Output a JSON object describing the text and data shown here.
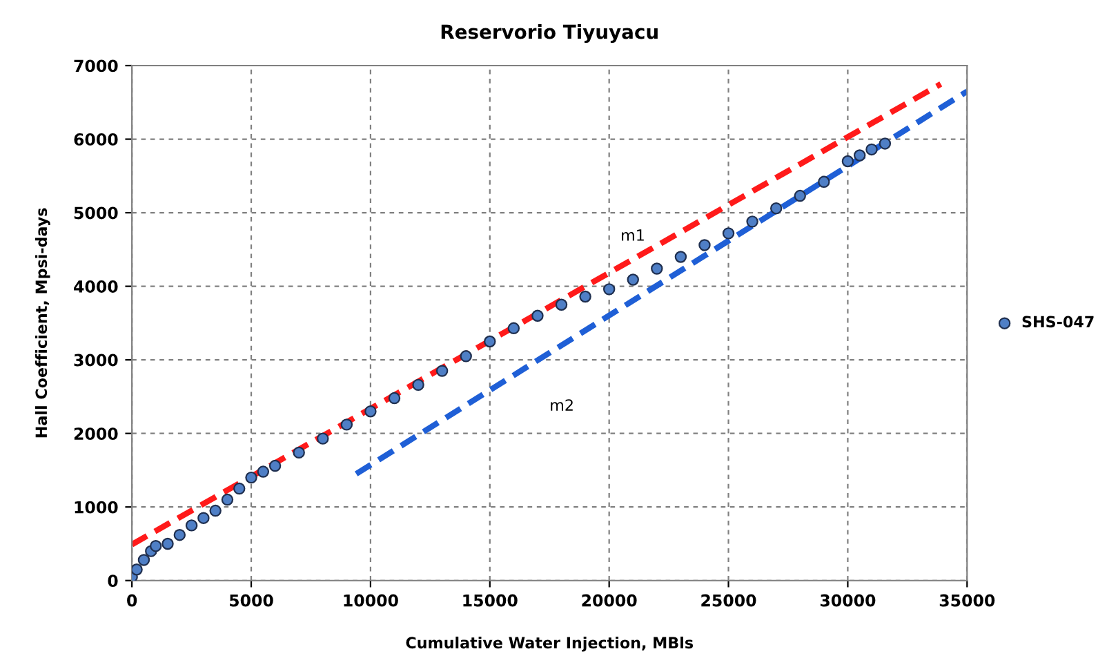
{
  "chart_data": {
    "type": "scatter",
    "title": "Reservorio Tiyuyacu",
    "xlabel": "Cumulative Water Injection, MBls",
    "ylabel": "Hall Coefficient, Mpsi-days",
    "xlim": [
      0,
      35000
    ],
    "xticks": [
      0,
      5000,
      10000,
      15000,
      20000,
      25000,
      30000,
      35000
    ],
    "ylim": [
      0,
      7000
    ],
    "yticks": [
      0,
      1000,
      2000,
      3000,
      4000,
      5000,
      6000,
      7000
    ],
    "grid": true,
    "legend": "right",
    "series": [
      {
        "name": "SHS-047",
        "marker": "circle",
        "color": "#4f7fc6",
        "x": [
          0,
          200,
          500,
          800,
          1000,
          1500,
          2000,
          2500,
          3000,
          3500,
          4000,
          4500,
          5000,
          5500,
          6000,
          7000,
          8000,
          9000,
          10000,
          11000,
          12000,
          13000,
          14000,
          15000,
          16000,
          17000,
          18000,
          19000,
          20000,
          21000,
          22000,
          23000,
          24000,
          25000,
          26000,
          27000,
          28000,
          29000,
          30000,
          30500,
          31000,
          31560
        ],
        "values": [
          50,
          150,
          280,
          400,
          470,
          500,
          620,
          750,
          850,
          950,
          1100,
          1250,
          1400,
          1480,
          1560,
          1740,
          1930,
          2120,
          2300,
          2480,
          2660,
          2850,
          3050,
          3250,
          3430,
          3600,
          3750,
          3860,
          3960,
          4090,
          4240,
          4400,
          4560,
          4720,
          4880,
          5060,
          5230,
          5420,
          5700,
          5780,
          5860,
          5940
        ]
      },
      {
        "type": "line",
        "line_style": "dashed",
        "color": "#ff1a1a",
        "x": [
          0,
          33900
        ],
        "values": [
          490,
          6750
        ]
      },
      {
        "type": "line",
        "line_style": "dashed",
        "color": "#1f5fd6",
        "x": [
          9400,
          35000
        ],
        "values": [
          1450,
          6650
        ]
      }
    ],
    "annotations": [
      "m1",
      "m2"
    ]
  }
}
